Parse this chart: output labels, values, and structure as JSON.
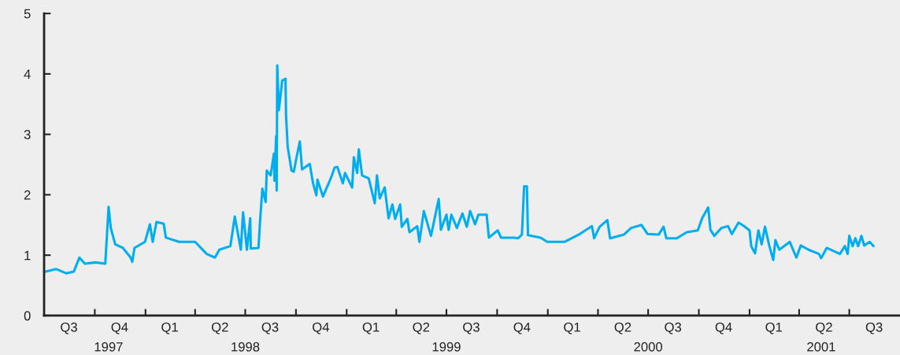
{
  "chart_data": {
    "type": "line",
    "x": [
      "1997-07-04",
      "1997-07-23",
      "1997-08-10",
      "1997-08-24",
      "1997-09-03",
      "1997-09-13",
      "1997-10-02",
      "1997-10-20",
      "1997-10-26",
      "1997-10-30",
      "1997-11-07",
      "1997-11-21",
      "1997-12-05",
      "1997-12-08",
      "1997-12-12",
      "1997-12-31",
      "1998-01-09",
      "1998-01-14",
      "1998-01-21",
      "1998-02-03",
      "1998-02-07",
      "1998-03-03",
      "1998-04-01",
      "1998-04-22",
      "1998-05-07",
      "1998-05-15",
      "1998-06-04",
      "1998-06-12",
      "1998-06-23",
      "1998-06-27",
      "1998-07-04",
      "1998-07-10",
      "1998-07-11",
      "1998-07-25",
      "1998-07-28",
      "1998-08-01",
      "1998-08-07",
      "1998-08-09",
      "1998-08-16",
      "1998-08-22",
      "1998-08-23",
      "1998-08-26",
      "1998-08-27",
      "1998-08-28",
      "1998-08-31",
      "1998-09-06",
      "1998-09-12",
      "1998-09-13",
      "1998-09-16",
      "1998-09-23",
      "1998-09-27",
      "1998-10-03",
      "1998-10-08",
      "1998-10-12",
      "1998-10-26",
      "1998-11-01",
      "1998-11-07",
      "1998-11-09",
      "1998-11-19",
      "1998-12-04",
      "1998-12-10",
      "1998-12-15",
      "1998-12-25",
      "1998-12-29",
      "1999-01-11",
      "1999-01-14",
      "1999-01-20",
      "1999-01-23",
      "1999-01-29",
      "1999-02-10",
      "1999-02-21",
      "1999-02-25",
      "1999-03-02",
      "1999-03-11",
      "1999-03-18",
      "1999-03-25",
      "1999-03-30",
      "1999-04-08",
      "1999-04-11",
      "1999-04-21",
      "1999-04-25",
      "1999-05-09",
      "1999-05-13",
      "1999-05-21",
      "1999-06-03",
      "1999-06-17",
      "1999-06-21",
      "1999-07-01",
      "1999-07-05",
      "1999-07-10",
      "1999-07-20",
      "1999-07-30",
      "1999-08-07",
      "1999-08-13",
      "1999-08-22",
      "1999-08-28",
      "1999-09-12",
      "1999-09-16",
      "1999-10-02",
      "1999-10-08",
      "1999-11-01",
      "1999-11-08",
      "1999-11-15",
      "1999-11-19",
      "1999-11-24",
      "1999-11-26",
      "1999-12-19",
      "1999-12-31",
      "2000-01-31",
      "2000-02-28",
      "2000-03-21",
      "2000-03-25",
      "2000-04-04",
      "2000-04-18",
      "2000-04-23",
      "2000-05-18",
      "2000-05-31",
      "2000-06-19",
      "2000-06-30",
      "2000-07-20",
      "2000-07-29",
      "2000-08-03",
      "2000-08-22",
      "2000-09-09",
      "2000-09-29",
      "2000-10-07",
      "2000-10-18",
      "2000-10-22",
      "2000-10-29",
      "2000-11-11",
      "2000-11-23",
      "2000-11-30",
      "2000-12-12",
      "2000-12-22",
      "2001-01-01",
      "2001-01-04",
      "2001-01-11",
      "2001-01-17",
      "2001-01-23",
      "2001-01-29",
      "2001-02-06",
      "2001-02-13",
      "2001-02-17",
      "2001-02-24",
      "2001-03-15",
      "2001-03-27",
      "2001-04-04",
      "2001-04-18",
      "2001-05-07",
      "2001-05-11",
      "2001-05-21",
      "2001-06-14",
      "2001-06-23",
      "2001-06-28",
      "2001-07-01",
      "2001-07-07",
      "2001-07-12",
      "2001-07-17",
      "2001-07-23",
      "2001-07-28",
      "2001-08-07",
      "2001-08-14"
    ],
    "series": [
      {
        "color": "#00aeef",
        "values": [
          0.73,
          0.77,
          0.7,
          0.73,
          0.96,
          0.86,
          0.88,
          0.86,
          1.8,
          1.45,
          1.18,
          1.12,
          0.96,
          0.89,
          1.12,
          1.22,
          1.51,
          1.22,
          1.55,
          1.52,
          1.29,
          1.22,
          1.22,
          1.02,
          0.96,
          1.09,
          1.15,
          1.64,
          1.09,
          1.71,
          1.09,
          1.61,
          1.11,
          1.12,
          1.58,
          2.1,
          1.88,
          2.4,
          2.32,
          2.68,
          2.23,
          2.97,
          2.07,
          4.14,
          3.4,
          3.89,
          3.92,
          3.31,
          2.79,
          2.4,
          2.38,
          2.66,
          2.88,
          2.42,
          2.51,
          2.19,
          1.99,
          2.25,
          1.97,
          2.29,
          2.45,
          2.46,
          2.19,
          2.36,
          2.12,
          2.62,
          2.36,
          2.75,
          2.32,
          2.27,
          1.86,
          2.32,
          1.94,
          2.12,
          1.61,
          1.84,
          1.6,
          1.84,
          1.47,
          1.6,
          1.38,
          1.48,
          1.22,
          1.73,
          1.32,
          1.93,
          1.42,
          1.67,
          1.42,
          1.67,
          1.45,
          1.69,
          1.47,
          1.73,
          1.51,
          1.67,
          1.67,
          1.29,
          1.41,
          1.29,
          1.29,
          1.28,
          1.34,
          2.14,
          2.14,
          1.33,
          1.29,
          1.22,
          1.22,
          1.35,
          1.48,
          1.28,
          1.47,
          1.58,
          1.28,
          1.34,
          1.45,
          1.5,
          1.35,
          1.34,
          1.47,
          1.28,
          1.28,
          1.38,
          1.41,
          1.61,
          1.79,
          1.42,
          1.32,
          1.45,
          1.48,
          1.35,
          1.54,
          1.48,
          1.41,
          1.15,
          1.03,
          1.41,
          1.18,
          1.47,
          1.15,
          0.92,
          1.25,
          1.09,
          1.22,
          0.96,
          1.16,
          1.09,
          1.02,
          0.95,
          1.12,
          1.02,
          1.15,
          1.02,
          1.32,
          1.15,
          1.28,
          1.15,
          1.32,
          1.16,
          1.22,
          1.15
        ]
      }
    ],
    "xlim": [
      "1997-07-01",
      "2001-10-01"
    ],
    "xticks": [
      {
        "value": "1997-10-01",
        "label": null
      },
      {
        "value": "1998-01-01",
        "label": null
      },
      {
        "value": "1998-04-01",
        "label": null
      },
      {
        "value": "1998-07-01",
        "label": null
      },
      {
        "value": "1998-10-01",
        "label": null
      },
      {
        "value": "1999-01-01",
        "label": null
      },
      {
        "value": "1999-04-01",
        "label": null
      },
      {
        "value": "1999-07-01",
        "label": null
      },
      {
        "value": "1999-10-01",
        "label": null
      },
      {
        "value": "2000-01-01",
        "label": null
      },
      {
        "value": "2000-04-01",
        "label": null
      },
      {
        "value": "2000-07-01",
        "label": null
      },
      {
        "value": "2000-10-01",
        "label": null
      },
      {
        "value": "2001-01-01",
        "label": null
      },
      {
        "value": "2001-04-01",
        "label": null
      },
      {
        "value": "2001-07-01",
        "label": null
      },
      {
        "value": "1997-08-15",
        "label": "Q3"
      },
      {
        "value": "1997-11-15",
        "label": "Q4"
      },
      {
        "value": "1998-02-14",
        "label": "Q1"
      },
      {
        "value": "1998-05-16",
        "label": "Q2"
      },
      {
        "value": "1998-08-15",
        "label": "Q3"
      },
      {
        "value": "1998-11-15",
        "label": "Q4"
      },
      {
        "value": "1999-02-14",
        "label": "Q1"
      },
      {
        "value": "1999-05-16",
        "label": "Q2"
      },
      {
        "value": "1999-08-15",
        "label": "Q3"
      },
      {
        "value": "1999-11-15",
        "label": "Q4"
      },
      {
        "value": "2000-02-14",
        "label": "Q1"
      },
      {
        "value": "2000-05-16",
        "label": "Q2"
      },
      {
        "value": "2000-08-15",
        "label": "Q3"
      },
      {
        "value": "2000-11-15",
        "label": "Q4"
      },
      {
        "value": "2001-02-14",
        "label": "Q1"
      },
      {
        "value": "2001-05-16",
        "label": "Q2"
      },
      {
        "value": "2001-08-15",
        "label": "Q3"
      }
    ],
    "x2lim": [
      "1997-07-01",
      "2001-10-01"
    ],
    "x2ticks": [
      {
        "value": "1997-10-26",
        "label": "1997"
      },
      {
        "value": "1998-07-01",
        "label": "1998"
      },
      {
        "value": "1999-07-01",
        "label": "1999"
      },
      {
        "value": "2000-07-01",
        "label": "2000"
      },
      {
        "value": "2001-05-11",
        "label": "2001"
      }
    ],
    "ylim": [
      0,
      5
    ],
    "yticks": [
      0,
      1,
      2,
      3,
      4,
      5
    ],
    "grid": false,
    "legend": false,
    "marker": "none",
    "line_style": "solid"
  }
}
